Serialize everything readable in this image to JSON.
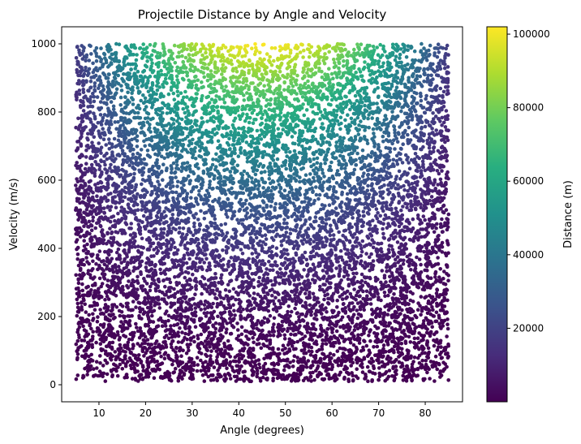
{
  "chart_data": {
    "type": "scatter",
    "title": "Projectile Distance by Angle and Velocity",
    "xlabel": "Angle (degrees)",
    "ylabel": "Velocity (m/s)",
    "xlim": [
      2,
      88
    ],
    "ylim": [
      -50,
      1050
    ],
    "x_ticks": [
      10,
      20,
      30,
      40,
      50,
      60,
      70,
      80
    ],
    "y_ticks": [
      0,
      200,
      400,
      600,
      800,
      1000
    ],
    "x_tick_labels": [
      "10",
      "20",
      "30",
      "40",
      "50",
      "60",
      "70",
      "80"
    ],
    "y_tick_labels": [
      "0",
      "200",
      "400",
      "600",
      "800",
      "1000"
    ],
    "grid": false,
    "colormap": "viridis",
    "color_value": "distance = v^2 * sin(2*angle) / 9.81",
    "data_range": {
      "angle": [
        5,
        85
      ],
      "velocity": [
        10,
        1000
      ],
      "distance": [
        0,
        102000
      ]
    },
    "sample_points": [
      {
        "angle": 45,
        "velocity": 1000,
        "distance": 101937
      },
      {
        "angle": 30,
        "velocity": 1000,
        "distance": 88280
      },
      {
        "angle": 60,
        "velocity": 1000,
        "distance": 88280
      },
      {
        "angle": 45,
        "velocity": 800,
        "distance": 65240
      },
      {
        "angle": 15,
        "velocity": 1000,
        "distance": 50968
      },
      {
        "angle": 75,
        "velocity": 1000,
        "distance": 50968
      },
      {
        "angle": 45,
        "velocity": 600,
        "distance": 36697
      },
      {
        "angle": 10,
        "velocity": 800,
        "distance": 22313
      },
      {
        "angle": 45,
        "velocity": 400,
        "distance": 16310
      },
      {
        "angle": 80,
        "velocity": 600,
        "distance": 12548
      },
      {
        "angle": 45,
        "velocity": 200,
        "distance": 4077
      },
      {
        "angle": 20,
        "velocity": 100,
        "distance": 655
      }
    ],
    "point_count": 10000,
    "marker_size": 2.3,
    "colorbar": {
      "label": "Distance (m)",
      "range": [
        0,
        102000
      ],
      "ticks": [
        20000,
        40000,
        60000,
        80000,
        100000
      ],
      "tick_labels": [
        "20000",
        "40000",
        "60000",
        "80000",
        "100000"
      ]
    }
  }
}
